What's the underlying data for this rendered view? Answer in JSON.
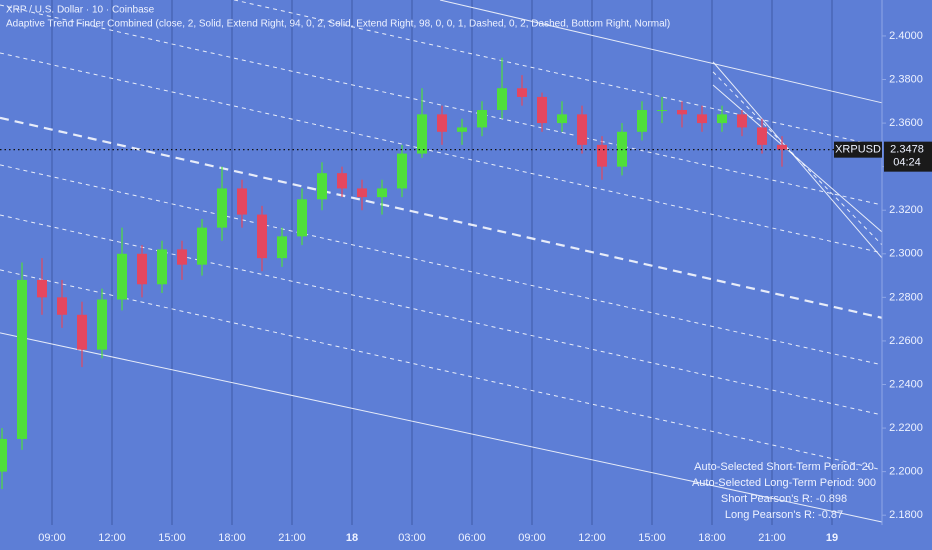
{
  "chart_data": {
    "type": "candlestick",
    "title": "XRP / U.S. Dollar · 10 · Coinbase",
    "subtitle": "Adaptive Trend Finder Combined (close, 2, Solid, Extend Right, 94, 0, 2, Solid, Extend Right, 98, 0, 0, 1, Dashed, 0, 2, Dashed, Bottom Right, Normal)",
    "x": [
      6.5,
      7.5,
      8.5,
      9.5,
      10.5,
      11.5,
      12.5,
      13.5,
      14.5,
      15.5,
      16.5,
      17.5,
      18.5,
      19.5,
      20.5,
      21.5,
      22.5,
      23.5,
      24.5,
      25.5,
      26.5,
      27.5,
      28.5,
      29.5,
      30.5,
      31.5,
      32.5,
      33.5,
      34.5,
      35.5,
      36.5,
      37.5,
      38.5,
      39.5,
      40.5,
      41.5,
      42.5,
      43.5,
      44.5,
      45.5
    ],
    "open": [
      2.2,
      2.215,
      2.288,
      2.28,
      2.272,
      2.256,
      2.279,
      2.3,
      2.286,
      2.302,
      2.295,
      2.312,
      2.33,
      2.318,
      2.298,
      2.308,
      2.325,
      2.337,
      2.33,
      2.326,
      2.33,
      2.346,
      2.364,
      2.356,
      2.358,
      2.366,
      2.376,
      2.372,
      2.36,
      2.364,
      2.35,
      2.34,
      2.356,
      2.366,
      2.366,
      2.364,
      2.36,
      2.364,
      2.358,
      2.35
    ],
    "high": [
      2.22,
      2.296,
      2.298,
      2.288,
      2.278,
      2.284,
      2.312,
      2.304,
      2.306,
      2.306,
      2.316,
      2.34,
      2.334,
      2.322,
      2.312,
      2.33,
      2.342,
      2.34,
      2.334,
      2.334,
      2.35,
      2.376,
      2.368,
      2.362,
      2.37,
      2.39,
      2.382,
      2.374,
      2.37,
      2.368,
      2.354,
      2.36,
      2.37,
      2.372,
      2.37,
      2.368,
      2.368,
      2.366,
      2.362,
      2.354
    ],
    "low": [
      2.192,
      2.21,
      2.272,
      2.266,
      2.248,
      2.252,
      2.274,
      2.28,
      2.282,
      2.288,
      2.29,
      2.306,
      2.312,
      2.292,
      2.294,
      2.304,
      2.32,
      2.326,
      2.32,
      2.318,
      2.326,
      2.344,
      2.35,
      2.35,
      2.354,
      2.362,
      2.368,
      2.356,
      2.356,
      2.346,
      2.334,
      2.336,
      2.352,
      2.36,
      2.358,
      2.356,
      2.356,
      2.354,
      2.346,
      2.34
    ],
    "close": [
      2.215,
      2.288,
      2.28,
      2.272,
      2.256,
      2.279,
      2.3,
      2.286,
      2.302,
      2.295,
      2.312,
      2.33,
      2.318,
      2.298,
      2.308,
      2.325,
      2.337,
      2.33,
      2.326,
      2.33,
      2.346,
      2.364,
      2.356,
      2.358,
      2.366,
      2.376,
      2.372,
      2.36,
      2.364,
      2.35,
      2.34,
      2.356,
      2.366,
      2.366,
      2.364,
      2.36,
      2.364,
      2.358,
      2.35,
      2.3478
    ],
    "up_color": "#4fdf3a",
    "down_color": "#e4475f",
    "xlim": [
      6.4,
      50.5
    ],
    "ylim": [
      2.1755,
      2.4165
    ],
    "xticks": [
      {
        "value": 9,
        "label": "09:00"
      },
      {
        "value": 12,
        "label": "12:00"
      },
      {
        "value": 15,
        "label": "15:00"
      },
      {
        "value": 18,
        "label": "18:00"
      },
      {
        "value": 21,
        "label": "21:00"
      },
      {
        "value": 24,
        "label": "18"
      },
      {
        "value": 27,
        "label": "03:00"
      },
      {
        "value": 30,
        "label": "06:00"
      },
      {
        "value": 33,
        "label": "09:00"
      },
      {
        "value": 36,
        "label": "12:00"
      },
      {
        "value": 39,
        "label": "15:00"
      },
      {
        "value": 42,
        "label": "18:00"
      },
      {
        "value": 45,
        "label": "21:00"
      },
      {
        "value": 48,
        "label": "19"
      }
    ],
    "yticks": [
      {
        "value": 2.4,
        "label": "2.4000"
      },
      {
        "value": 2.38,
        "label": "2.3800"
      },
      {
        "value": 2.36,
        "label": "2.3600"
      },
      {
        "value": 2.34,
        "label": "2.3400"
      },
      {
        "value": 2.32,
        "label": "2.3200"
      },
      {
        "value": 2.3,
        "label": "2.3000"
      },
      {
        "value": 2.28,
        "label": "2.2800"
      },
      {
        "value": 2.26,
        "label": "2.2600"
      },
      {
        "value": 2.24,
        "label": "2.2400"
      },
      {
        "value": 2.22,
        "label": "2.2200"
      },
      {
        "value": 2.2,
        "label": "2.2000"
      },
      {
        "value": 2.18,
        "label": "2.1800"
      }
    ],
    "grid": true,
    "channel_lines": [
      {
        "style": "solid",
        "x": [
          28.4,
          50.5
        ],
        "y": [
          2.4165,
          2.3693
        ]
      },
      {
        "style": "dashed",
        "x": [
          6.4,
          50.5
        ],
        "y": [
          2.4409,
          2.3491
        ]
      },
      {
        "style": "dashed",
        "x": [
          6.4,
          50.5
        ],
        "y": [
          2.4142,
          2.3224
        ]
      },
      {
        "style": "dashed",
        "x": [
          6.4,
          50.5
        ],
        "y": [
          2.3922,
          2.3004
        ]
      },
      {
        "style": "thick-dashed",
        "x": [
          6.4,
          50.5
        ],
        "y": [
          2.3624,
          2.2706
        ]
      },
      {
        "style": "dashed",
        "x": [
          6.4,
          50.5
        ],
        "y": [
          2.3408,
          2.249
        ]
      },
      {
        "style": "dashed",
        "x": [
          6.4,
          50.5
        ],
        "y": [
          2.3178,
          2.226
        ]
      },
      {
        "style": "dashed",
        "x": [
          6.4,
          50.5
        ],
        "y": [
          2.2926,
          2.2008
        ]
      },
      {
        "style": "solid",
        "x": [
          6.4,
          50.5
        ],
        "y": [
          2.2637,
          2.1769
        ]
      },
      {
        "style": "solid",
        "x": [
          42.05,
          50.5
        ],
        "y": [
          2.3881,
          2.2981
        ]
      },
      {
        "style": "dashed",
        "x": [
          42.05,
          50.5
        ],
        "y": [
          2.3835,
          2.3041
        ]
      },
      {
        "style": "solid",
        "x": [
          42.05,
          50.5
        ],
        "y": [
          2.3775,
          2.31
        ]
      }
    ],
    "symbol": "XRPUSD",
    "last_price": 2.3478,
    "countdown": "04:24",
    "stats": [
      "Auto-Selected Short-Term Period: 20",
      "Auto-Selected Long-Term Period: 900",
      "Short Pearson's R: -0.898",
      "Long Pearson's R: -0.87"
    ]
  }
}
